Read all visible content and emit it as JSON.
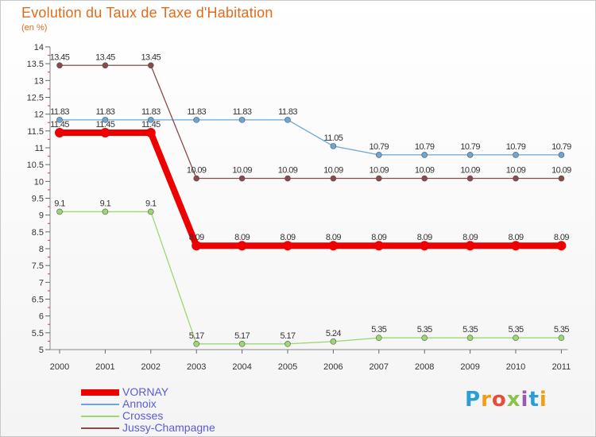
{
  "title": "Evolution du Taux de Taxe d'Habitation",
  "subtitle": "(en %)",
  "logo": {
    "text": "Proxiti",
    "colors": [
      "#2a9fd6",
      "#f39c12",
      "#e74c3c",
      "#8bc34a",
      "#9b59b6",
      "#2a9fd6",
      "#f39c12"
    ]
  },
  "chart_data": {
    "type": "line",
    "title": "Evolution du Taux de Taxe d'Habitation",
    "subtitle": "(en %)",
    "xlabel": "",
    "ylabel": "",
    "x": [
      "2000",
      "2001",
      "2002",
      "2003",
      "2004",
      "2005",
      "2006",
      "2007",
      "2008",
      "2009",
      "2010",
      "2011"
    ],
    "ylim": [
      5,
      14
    ],
    "yticks": [
      "5",
      "5.5",
      "6",
      "6.5",
      "7",
      "7.5",
      "8",
      "8.5",
      "9",
      "9.5",
      "10",
      "10.5",
      "11",
      "11.5",
      "12",
      "12.5",
      "13",
      "13.5",
      "14"
    ],
    "grid": false,
    "legend_position": "bottom-left",
    "series": [
      {
        "name": "VORNAY",
        "color": "#ee0000",
        "width": 8,
        "marker": 6,
        "values": [
          11.45,
          11.45,
          11.45,
          8.09,
          8.09,
          8.09,
          8.09,
          8.09,
          8.09,
          8.09,
          8.09,
          8.09
        ],
        "labels": [
          "11.45",
          "11.45",
          "11.45",
          "8.09",
          "8.09",
          "8.09",
          "8.09",
          "8.09",
          "8.09",
          "8.09",
          "8.09",
          "8.09"
        ]
      },
      {
        "name": "Annoix",
        "color": "#6aa7d6",
        "width": 1.3,
        "marker": 3.5,
        "values": [
          11.83,
          11.83,
          11.83,
          11.83,
          11.83,
          11.83,
          11.05,
          10.79,
          10.79,
          10.79,
          10.79,
          10.79
        ],
        "labels": [
          "11.83",
          "11.83",
          "11.83",
          "11.83",
          "11.83",
          "11.83",
          "11.05",
          "10.79",
          "10.79",
          "10.79",
          "10.79",
          "10.79"
        ]
      },
      {
        "name": "Crosses",
        "color": "#9bd86f",
        "width": 1.3,
        "marker": 3.5,
        "values": [
          9.1,
          9.1,
          9.1,
          5.17,
          5.17,
          5.17,
          5.24,
          5.35,
          5.35,
          5.35,
          5.35,
          5.35
        ],
        "labels": [
          "9.1",
          "9.1",
          "9.1",
          "5.17",
          "5.17",
          "5.17",
          "5.24",
          "5.35",
          "5.35",
          "5.35",
          "5.35",
          "5.35"
        ]
      },
      {
        "name": "Jussy-Champagne",
        "color": "#8b4a4a",
        "width": 1.3,
        "marker": 3.5,
        "values": [
          13.45,
          13.45,
          13.45,
          10.09,
          10.09,
          10.09,
          10.09,
          10.09,
          10.09,
          10.09,
          10.09,
          10.09
        ],
        "labels": [
          "13.45",
          "13.45",
          "13.45",
          "10.09",
          "10.09",
          "10.09",
          "10.09",
          "10.09",
          "10.09",
          "10.09",
          "10.09",
          "10.09"
        ]
      }
    ]
  }
}
